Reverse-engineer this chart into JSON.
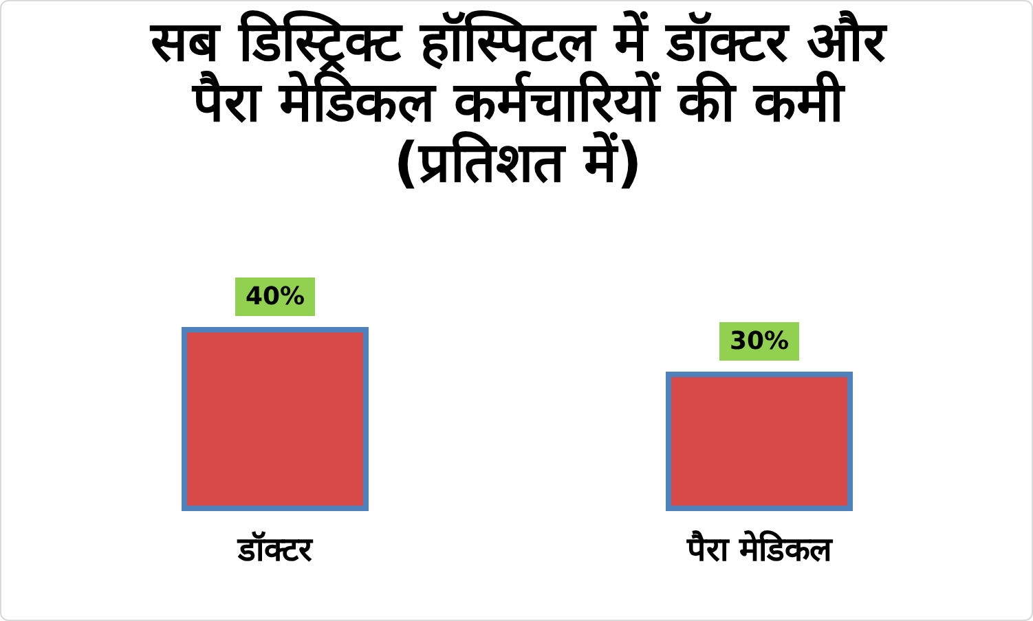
{
  "chart_data": {
    "type": "bar",
    "title": "सब डिस्ट्रिक्ट हॉस्पिटल में डॉक्टर और पैरा मेडिकल कर्मचारियों की कमी (प्रतिशत में)",
    "categories": [
      "डॉक्टर",
      "पैरा मेडिकल"
    ],
    "values": [
      40,
      30
    ],
    "value_labels": [
      "40%",
      "30%"
    ],
    "color": "#d64a4a"
  }
}
